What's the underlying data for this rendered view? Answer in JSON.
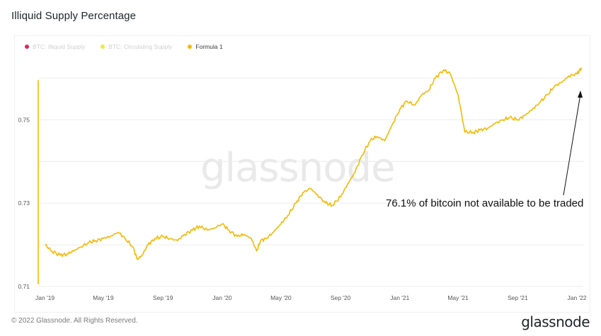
{
  "title": "Illiquid Supply Percentage",
  "legend": [
    {
      "label": "BTC: Illiquid Supply",
      "color": "#e0245e",
      "active": false
    },
    {
      "label": "BTC: Circulating Supply",
      "color": "#f5e642",
      "active": false
    },
    {
      "label": "Formula 1",
      "color": "#f5b800",
      "active": true
    }
  ],
  "watermark": "glassnode",
  "annotation": "76.1% of bitcoin not available to be traded",
  "footer": "© 2022 Glassnode. All Rights Reserved.",
  "brand": "glassnode",
  "chart_data": {
    "type": "line",
    "title": "Illiquid Supply Percentage",
    "xlabel": "",
    "ylabel": "",
    "yticks": [
      "0.71",
      "0.73",
      "0.75"
    ],
    "ylim": [
      0.71,
      0.766
    ],
    "xticks": [
      "Jan '19",
      "May '19",
      "Sep '19",
      "Jan '20",
      "May '20",
      "Sep '20",
      "Jan '21",
      "May '21",
      "Sep '21",
      "Jan '22"
    ],
    "grid": true,
    "legend_position": "top-left",
    "series": [
      {
        "name": "Formula 1",
        "color": "#f5b800",
        "x": [
          "2019-01-01",
          "2019-01-15",
          "2019-02-01",
          "2019-02-15",
          "2019-03-01",
          "2019-03-15",
          "2019-04-01",
          "2019-04-15",
          "2019-05-01",
          "2019-05-15",
          "2019-06-01",
          "2019-06-15",
          "2019-07-01",
          "2019-07-10",
          "2019-07-20",
          "2019-08-01",
          "2019-08-15",
          "2019-09-01",
          "2019-09-15",
          "2019-10-01",
          "2019-10-15",
          "2019-11-01",
          "2019-11-15",
          "2019-12-01",
          "2019-12-15",
          "2020-01-01",
          "2020-01-15",
          "2020-02-01",
          "2020-02-15",
          "2020-03-01",
          "2020-03-12",
          "2020-03-20",
          "2020-04-01",
          "2020-04-15",
          "2020-05-01",
          "2020-05-15",
          "2020-06-01",
          "2020-06-15",
          "2020-07-01",
          "2020-07-15",
          "2020-08-01",
          "2020-08-15",
          "2020-09-01",
          "2020-09-15",
          "2020-10-01",
          "2020-10-15",
          "2020-11-01",
          "2020-11-15",
          "2020-12-01",
          "2020-12-15",
          "2021-01-01",
          "2021-01-15",
          "2021-02-01",
          "2021-02-15",
          "2021-03-01",
          "2021-03-15",
          "2021-04-01",
          "2021-04-15",
          "2021-05-01",
          "2021-05-15",
          "2021-06-01",
          "2021-06-15",
          "2021-07-01",
          "2021-07-15",
          "2021-08-01",
          "2021-08-15",
          "2021-09-01",
          "2021-09-15",
          "2021-10-01",
          "2021-10-15",
          "2021-11-01",
          "2021-11-15",
          "2021-12-01",
          "2021-12-15",
          "2022-01-01",
          "2022-01-10"
        ],
        "values": [
          0.72,
          0.7185,
          0.7175,
          0.7178,
          0.7185,
          0.7195,
          0.7205,
          0.721,
          0.7215,
          0.722,
          0.723,
          0.7215,
          0.7195,
          0.7165,
          0.7175,
          0.72,
          0.7215,
          0.722,
          0.7215,
          0.721,
          0.7225,
          0.7235,
          0.7245,
          0.7235,
          0.724,
          0.725,
          0.7235,
          0.722,
          0.7225,
          0.7215,
          0.7185,
          0.721,
          0.7215,
          0.723,
          0.725,
          0.727,
          0.73,
          0.7325,
          0.7335,
          0.732,
          0.73,
          0.7295,
          0.7315,
          0.7345,
          0.7375,
          0.7415,
          0.745,
          0.746,
          0.745,
          0.7485,
          0.7525,
          0.7545,
          0.7535,
          0.756,
          0.757,
          0.76,
          0.762,
          0.761,
          0.756,
          0.747,
          0.747,
          0.7475,
          0.748,
          0.749,
          0.75,
          0.7505,
          0.75,
          0.751,
          0.7525,
          0.754,
          0.756,
          0.758,
          0.759,
          0.7605,
          0.761,
          0.7625
        ]
      }
    ]
  }
}
